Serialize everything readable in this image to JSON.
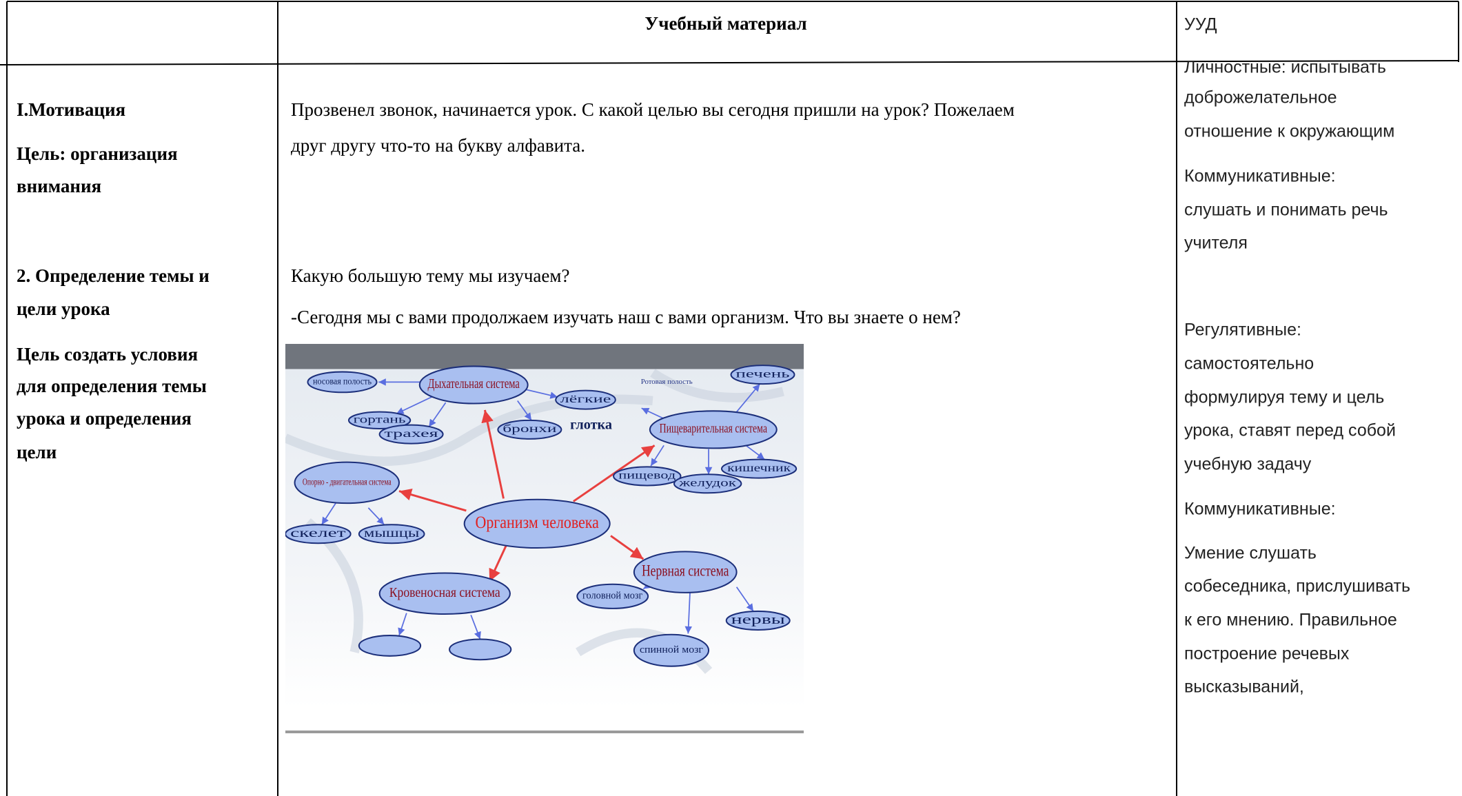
{
  "table": {
    "header": [
      "Учебный материал",
      "УУД"
    ],
    "rows": [
      {
        "stage": [
          "I.Мотивация",
          "Цель: организация",
          "внимания"
        ],
        "material": [
          "Прозвенел звонок, начинается урок. С какой целью вы сегодня пришли на урок? Пожелаем",
          "друг другу что-то на букву алфавита."
        ],
        "uud": [
          "Личностные: испытывать",
          "доброжелательное",
          "отношение к окружающим",
          "Коммуникативные:",
          "слушать и понимать речь",
          "учителя"
        ]
      },
      {
        "stage": [
          "2. Определение темы и",
          "цели урока",
          "Цель создать условия",
          "для определения темы",
          "урока и определения",
          "цели"
        ],
        "material": [
          "Какую большую тему мы изучаем?",
          "-Сегодня мы с вами продолжаем изучать наш с вами организм. Что вы знаете о нем?"
        ],
        "uud": [
          "Регулятивные:",
          "самостоятельно",
          "формулируя тему и цель",
          "урока,  ставят перед собой",
          "учебную задачу",
          "Коммуникативные:",
          "Умение слушать",
          "собеседника, прислушивать",
          "к его мнению. Правильное",
          "построение речевых",
          "высказываний,"
        ]
      }
    ]
  },
  "diagram": {
    "nodes": [
      "носовая полость",
      "Дыхательная система",
      "лёгкие",
      "Ротовая полость",
      "печень",
      "гортань",
      "трахея",
      "бронхи",
      "глотка",
      "Пищеварительная система",
      "кишечник",
      "пищевод",
      "желудок",
      "Опорно - двигательная система",
      "скелет",
      "мышцы",
      "Организм человека",
      "Нервная система",
      "головной мозг",
      "нервы",
      "Кровеносная система",
      "спинной мозг"
    ]
  }
}
